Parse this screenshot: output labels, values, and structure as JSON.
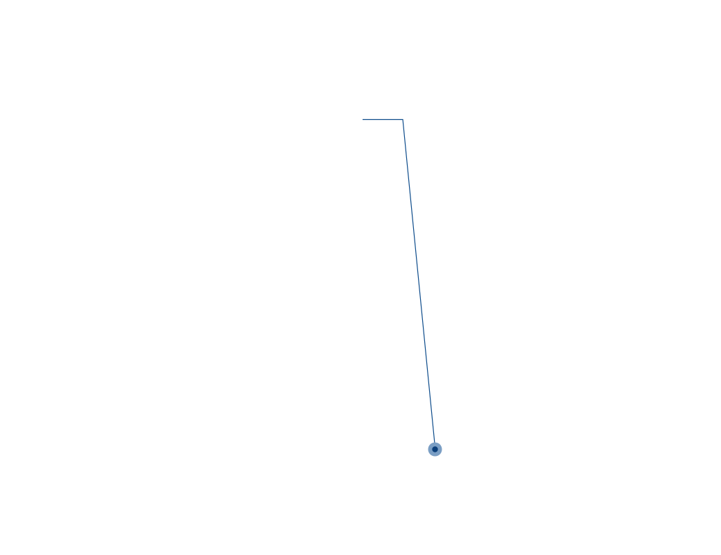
{
  "annotation": {
    "line_color": "#0b4a8a",
    "marker_outer_color": "#7a9ec4",
    "marker_inner_color": "#0b3f7a"
  }
}
